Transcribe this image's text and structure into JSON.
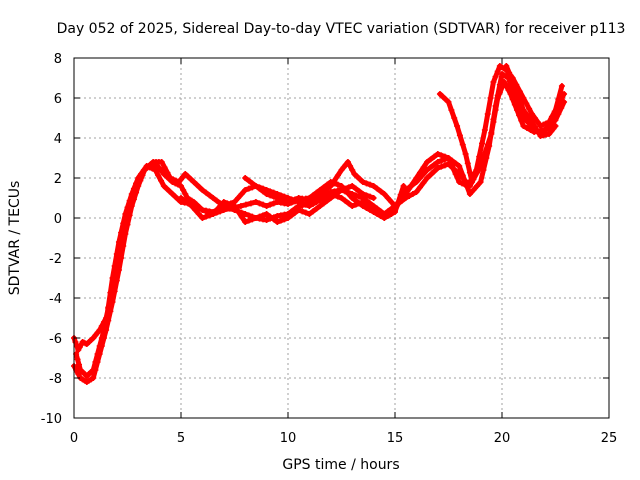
{
  "chart_data": {
    "type": "scatter",
    "title": "Day 052 of 2025, Sidereal Day-to-day VTEC variation (SDTVAR) for receiver p113",
    "xlabel": "GPS time / hours",
    "ylabel": "SDTVAR / TECUs",
    "xlim": [
      0,
      25
    ],
    "ylim": [
      -10,
      8
    ],
    "xticks": [
      0,
      5,
      10,
      15,
      20,
      25
    ],
    "yticks": [
      -10,
      -8,
      -6,
      -4,
      -2,
      0,
      2,
      4,
      6,
      8
    ],
    "grid": true,
    "marker": "plus",
    "series": [
      {
        "name": "SDTVAR",
        "color": "#ff0000",
        "tracks": [
          [
            [
              0.0,
              -6.0
            ],
            [
              0.2,
              -6.6
            ],
            [
              0.4,
              -6.2
            ],
            [
              0.6,
              -6.3
            ],
            [
              0.9,
              -6.0
            ],
            [
              1.2,
              -5.6
            ],
            [
              1.5,
              -5.0
            ],
            [
              1.8,
              -3.6
            ],
            [
              2.1,
              -1.8
            ],
            [
              2.4,
              -0.2
            ],
            [
              2.7,
              1.0
            ],
            [
              3.0,
              1.8
            ],
            [
              3.3,
              2.4
            ],
            [
              3.6,
              2.7
            ],
            [
              3.9,
              2.6
            ],
            [
              4.2,
              2.2
            ],
            [
              4.6,
              1.8
            ],
            [
              5.0,
              1.6
            ],
            [
              5.3,
              1.0
            ],
            [
              5.6,
              0.8
            ],
            [
              6.0,
              0.4
            ],
            [
              6.5,
              0.3
            ],
            [
              7.0,
              0.6
            ],
            [
              7.5,
              0.4
            ],
            [
              8.0,
              0.2
            ],
            [
              8.5,
              0.0
            ],
            [
              9.0,
              -0.1
            ],
            [
              9.5,
              0.1
            ],
            [
              10.0,
              0.2
            ],
            [
              10.5,
              0.6
            ],
            [
              11.0,
              0.7
            ],
            [
              11.5,
              1.0
            ],
            [
              12.0,
              1.3
            ],
            [
              12.5,
              1.4
            ],
            [
              13.0,
              1.2
            ],
            [
              13.5,
              1.0
            ],
            [
              14.0,
              0.6
            ],
            [
              14.5,
              0.2
            ],
            [
              15.0,
              0.6
            ],
            [
              15.5,
              1.0
            ],
            [
              16.0,
              1.3
            ],
            [
              16.5,
              2.0
            ],
            [
              17.0,
              2.5
            ],
            [
              17.5,
              2.7
            ],
            [
              18.0,
              2.2
            ],
            [
              18.5,
              1.6
            ],
            [
              19.0,
              2.6
            ],
            [
              19.5,
              4.2
            ],
            [
              19.8,
              6.0
            ],
            [
              20.1,
              6.8
            ],
            [
              20.4,
              6.2
            ],
            [
              20.7,
              5.4
            ],
            [
              21.0,
              4.6
            ],
            [
              21.5,
              4.3
            ],
            [
              22.0,
              4.4
            ],
            [
              22.5,
              4.9
            ],
            [
              22.9,
              5.8
            ]
          ],
          [
            [
              0.1,
              -6.8
            ],
            [
              0.3,
              -7.6
            ],
            [
              0.6,
              -7.9
            ],
            [
              0.9,
              -7.6
            ],
            [
              1.2,
              -6.4
            ],
            [
              1.5,
              -5.2
            ],
            [
              1.8,
              -3.0
            ],
            [
              2.1,
              -1.2
            ],
            [
              2.4,
              0.2
            ],
            [
              2.7,
              1.2
            ],
            [
              3.0,
              2.0
            ],
            [
              3.4,
              2.6
            ],
            [
              3.8,
              2.4
            ],
            [
              4.2,
              1.6
            ],
            [
              4.6,
              1.2
            ],
            [
              5.0,
              0.8
            ],
            [
              5.5,
              0.7
            ],
            [
              6.0,
              0.4
            ],
            [
              6.5,
              0.2
            ],
            [
              7.0,
              0.4
            ],
            [
              7.8,
              0.6
            ],
            [
              8.5,
              0.8
            ],
            [
              9.0,
              0.6
            ],
            [
              9.5,
              0.8
            ],
            [
              10.0,
              0.7
            ],
            [
              10.5,
              0.9
            ],
            [
              11.0,
              1.0
            ],
            [
              11.5,
              1.4
            ],
            [
              12.0,
              1.8
            ],
            [
              12.5,
              1.6
            ],
            [
              13.0,
              1.0
            ],
            [
              13.5,
              0.6
            ],
            [
              14.0,
              0.3
            ],
            [
              14.5,
              0.0
            ],
            [
              15.0,
              0.4
            ],
            [
              15.5,
              1.4
            ],
            [
              16.0,
              1.8
            ],
            [
              16.5,
              2.4
            ],
            [
              17.0,
              2.8
            ],
            [
              17.5,
              3.0
            ],
            [
              18.0,
              2.6
            ],
            [
              18.5,
              1.2
            ],
            [
              19.0,
              1.8
            ],
            [
              19.4,
              3.6
            ],
            [
              19.7,
              5.6
            ],
            [
              20.0,
              7.2
            ],
            [
              20.3,
              7.0
            ],
            [
              20.6,
              6.0
            ],
            [
              21.0,
              5.0
            ],
            [
              21.4,
              4.6
            ],
            [
              21.8,
              4.2
            ],
            [
              22.3,
              4.6
            ],
            [
              22.8,
              6.6
            ]
          ],
          [
            [
              0.0,
              -7.4
            ],
            [
              0.3,
              -8.0
            ],
            [
              0.6,
              -8.2
            ],
            [
              0.9,
              -8.0
            ],
            [
              1.2,
              -6.8
            ],
            [
              1.5,
              -5.6
            ],
            [
              1.8,
              -4.2
            ],
            [
              2.1,
              -2.6
            ],
            [
              2.4,
              -0.8
            ],
            [
              2.7,
              0.6
            ],
            [
              3.0,
              1.6
            ],
            [
              3.3,
              2.4
            ],
            [
              3.7,
              2.8
            ],
            [
              4.1,
              2.8
            ],
            [
              4.5,
              2.0
            ],
            [
              4.9,
              1.8
            ],
            [
              5.2,
              2.2
            ],
            [
              5.6,
              1.8
            ],
            [
              6.0,
              1.4
            ],
            [
              6.5,
              1.0
            ],
            [
              7.0,
              0.6
            ],
            [
              7.5,
              0.8
            ],
            [
              8.0,
              1.4
            ],
            [
              8.5,
              1.6
            ],
            [
              9.0,
              1.2
            ],
            [
              9.5,
              1.0
            ],
            [
              10.0,
              0.8
            ],
            [
              10.5,
              1.0
            ],
            [
              11.0,
              0.9
            ],
            [
              11.5,
              1.2
            ],
            [
              12.0,
              1.6
            ],
            [
              12.5,
              2.4
            ],
            [
              12.8,
              2.8
            ],
            [
              13.1,
              2.2
            ],
            [
              13.5,
              1.8
            ],
            [
              14.0,
              1.6
            ],
            [
              14.5,
              1.2
            ],
            [
              15.0,
              0.6
            ],
            [
              15.5,
              1.2
            ],
            [
              16.0,
              2.0
            ],
            [
              16.5,
              2.8
            ],
            [
              17.0,
              3.2
            ],
            [
              17.5,
              3.0
            ],
            [
              18.0,
              1.8
            ],
            [
              18.4,
              1.6
            ],
            [
              18.8,
              2.4
            ],
            [
              19.2,
              4.4
            ],
            [
              19.6,
              6.8
            ],
            [
              19.9,
              7.6
            ],
            [
              20.2,
              7.4
            ],
            [
              20.5,
              7.0
            ],
            [
              21.0,
              6.0
            ],
            [
              21.4,
              5.2
            ],
            [
              21.8,
              4.6
            ],
            [
              22.2,
              4.8
            ],
            [
              22.6,
              5.6
            ],
            [
              22.9,
              6.2
            ]
          ],
          [
            [
              8.0,
              2.0
            ],
            [
              8.5,
              1.6
            ],
            [
              9.0,
              1.4
            ],
            [
              9.5,
              1.2
            ],
            [
              10.0,
              1.0
            ],
            [
              10.5,
              0.8
            ],
            [
              11.0,
              0.6
            ],
            [
              11.5,
              0.9
            ],
            [
              12.0,
              1.2
            ],
            [
              12.5,
              1.0
            ],
            [
              13.0,
              0.6
            ],
            [
              13.5,
              0.8
            ],
            [
              14.0,
              0.4
            ],
            [
              14.5,
              0.0
            ],
            [
              15.0,
              0.3
            ],
            [
              15.4,
              1.6
            ]
          ],
          [
            [
              17.1,
              6.2
            ],
            [
              17.5,
              5.8
            ],
            [
              17.9,
              4.6
            ],
            [
              18.3,
              3.2
            ],
            [
              18.6,
              1.8
            ]
          ],
          [
            [
              20.2,
              7.6
            ],
            [
              20.6,
              6.6
            ],
            [
              21.0,
              5.4
            ],
            [
              21.4,
              4.8
            ],
            [
              21.8,
              4.1
            ],
            [
              22.2,
              4.2
            ],
            [
              22.5,
              4.6
            ]
          ],
          [
            [
              5.0,
              1.0
            ],
            [
              5.5,
              0.6
            ],
            [
              6.0,
              0.0
            ],
            [
              6.5,
              0.2
            ],
            [
              7.0,
              0.8
            ],
            [
              7.5,
              0.6
            ],
            [
              8.0,
              -0.2
            ],
            [
              8.5,
              0.0
            ],
            [
              9.0,
              0.2
            ],
            [
              9.5,
              -0.2
            ],
            [
              10.0,
              0.0
            ],
            [
              10.5,
              0.4
            ],
            [
              11.0,
              0.2
            ],
            [
              11.5,
              0.6
            ],
            [
              12.0,
              1.0
            ],
            [
              12.5,
              1.4
            ],
            [
              13.0,
              1.6
            ],
            [
              13.5,
              1.2
            ],
            [
              14.0,
              1.0
            ]
          ]
        ]
      }
    ]
  }
}
